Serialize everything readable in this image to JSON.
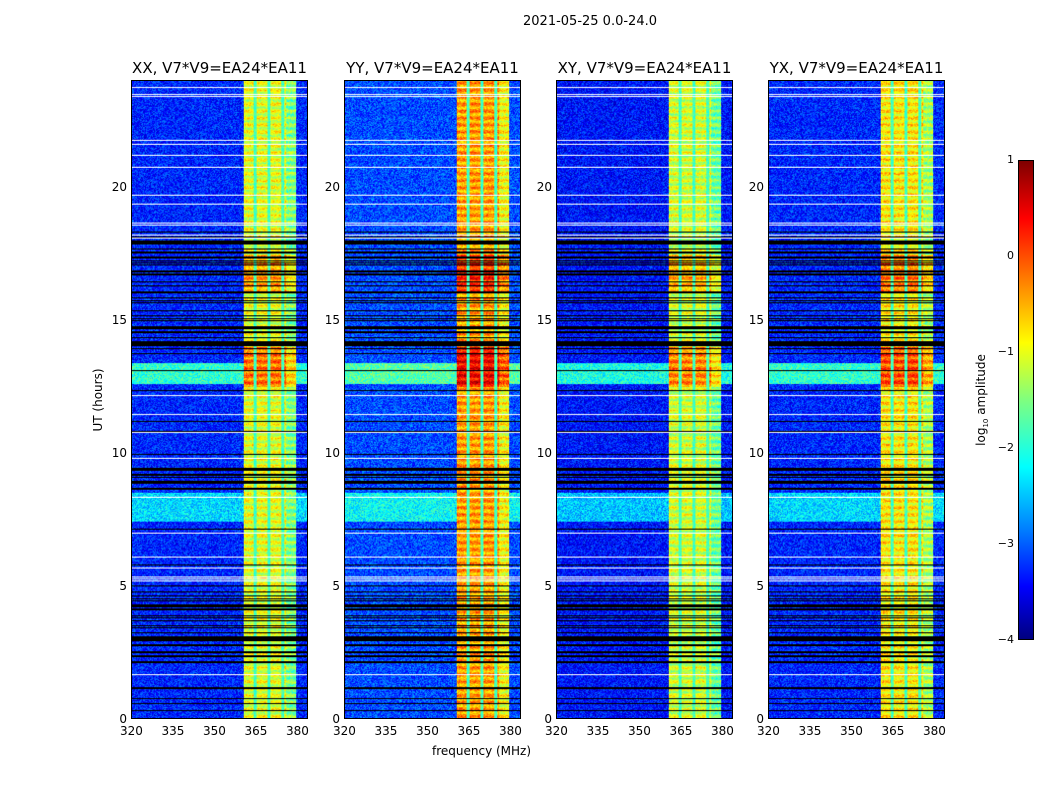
{
  "suptitle": "2021-05-25 0.0-24.0",
  "colorbar": {
    "label_prefix": "log",
    "label_sub": "10",
    "label_suffix": " amplitude",
    "ticks": [
      "1",
      "0",
      "−1",
      "−2",
      "−3",
      "−4"
    ],
    "range": [
      -4,
      1
    ],
    "colormap": "jet"
  },
  "chart_data": {
    "type": "heatmap",
    "title": "2021-05-25 0.0-24.0",
    "xlabel": "frequency (MHz)",
    "ylabel": "UT (hours)",
    "xlim": [
      320,
      384
    ],
    "ylim": [
      0,
      24
    ],
    "xticks": [
      "320",
      "335",
      "350",
      "365",
      "380"
    ],
    "yticks": [
      "0",
      "5",
      "10",
      "15",
      "20"
    ],
    "value_range": [
      -4,
      1
    ],
    "panels": [
      {
        "title": "XX, V7*V9=EA24*EA11",
        "background_level": -3.2,
        "band_level": -1.0,
        "band_mhz": [
          360.5,
          380
        ]
      },
      {
        "title": "YY, V7*V9=EA24*EA11",
        "background_level": -3.0,
        "band_level": -0.4,
        "band_mhz": [
          360.5,
          380
        ]
      },
      {
        "title": "XY, V7*V9=EA24*EA11",
        "background_level": -3.3,
        "band_level": -1.1,
        "band_mhz": [
          360.5,
          380
        ]
      },
      {
        "title": "YX, V7*V9=EA24*EA11",
        "background_level": -3.2,
        "band_level": -0.8,
        "band_mhz": [
          360.5,
          380
        ]
      }
    ]
  }
}
